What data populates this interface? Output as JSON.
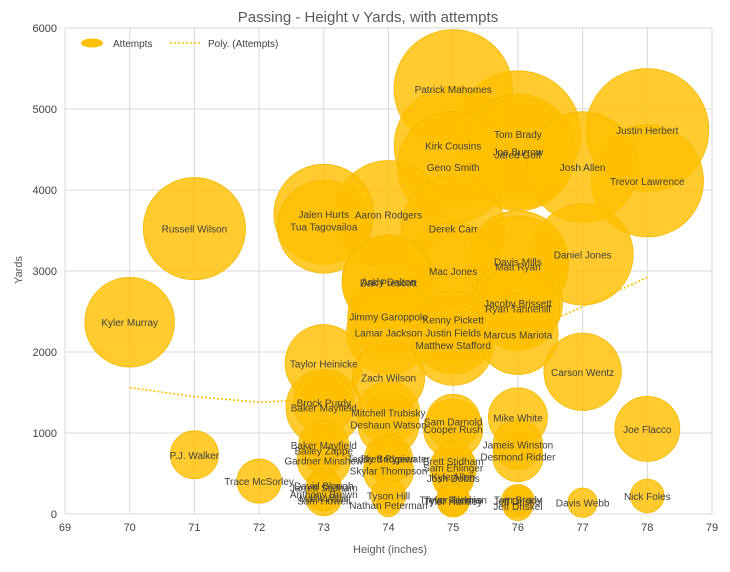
{
  "chart_data": {
    "type": "bubble",
    "title": "Passing - Height v Yards, with attempts",
    "xlabel": "Height (inches)",
    "ylabel": "Yards",
    "xlim": [
      69,
      79
    ],
    "ylim": [
      0,
      6000
    ],
    "x_ticks": [
      "69",
      "70",
      "71",
      "72",
      "73",
      "74",
      "75",
      "76",
      "77",
      "78",
      "79"
    ],
    "y_ticks": [
      "0",
      "1000",
      "2000",
      "3000",
      "4000",
      "5000",
      "6000"
    ],
    "grid": true,
    "legend": {
      "position": "top-left",
      "series_label": "Attempts",
      "trend_label": "Poly. (Attempts)"
    },
    "colors": {
      "bubble": "#FFC000",
      "bubble_stroke": "#F5B800",
      "trend": "#FFC000",
      "grid": "#D9D9D9",
      "text": "#404040",
      "title": "#595959"
    },
    "trend": {
      "x": [
        70,
        71,
        72,
        73,
        74,
        75,
        76,
        77,
        78
      ],
      "y": [
        1560,
        1450,
        1380,
        1420,
        1580,
        1860,
        2200,
        2560,
        2920
      ]
    },
    "points": [
      {
        "name": "Patrick Mahomes",
        "x": 75,
        "y": 5250,
        "attempts": 648
      },
      {
        "name": "Justin Herbert",
        "x": 78,
        "y": 4739,
        "attempts": 699
      },
      {
        "name": "Tom Brady",
        "x": 76,
        "y": 4694,
        "attempts": 733
      },
      {
        "name": "Kirk Cousins",
        "x": 75,
        "y": 4547,
        "attempts": 643
      },
      {
        "name": "Joe Burrow",
        "x": 76,
        "y": 4475,
        "attempts": 606
      },
      {
        "name": "Jared Goff",
        "x": 76,
        "y": 4438,
        "attempts": 587
      },
      {
        "name": "Josh Allen",
        "x": 77,
        "y": 4283,
        "attempts": 567
      },
      {
        "name": "Geno Smith",
        "x": 75,
        "y": 4282,
        "attempts": 572
      },
      {
        "name": "Trevor Lawrence",
        "x": 78,
        "y": 4113,
        "attempts": 584
      },
      {
        "name": "Aaron Rodgers",
        "x": 74,
        "y": 3695,
        "attempts": 542
      },
      {
        "name": "Jalen Hurts",
        "x": 73,
        "y": 3701,
        "attempts": 460
      },
      {
        "name": "Tua Tagovailoa",
        "x": 73,
        "y": 3548,
        "attempts": 400
      },
      {
        "name": "Russell Wilson",
        "x": 71,
        "y": 3524,
        "attempts": 483
      },
      {
        "name": "Derek Carr",
        "x": 75,
        "y": 3522,
        "attempts": 502
      },
      {
        "name": "Daniel Jones",
        "x": 77,
        "y": 3205,
        "attempts": 472
      },
      {
        "name": "Davis Mills",
        "x": 76,
        "y": 3118,
        "attempts": 473
      },
      {
        "name": "Matt Ryan",
        "x": 76,
        "y": 3057,
        "attempts": 469
      },
      {
        "name": "Mac Jones",
        "x": 75,
        "y": 2997,
        "attempts": 442
      },
      {
        "name": "Dak Prescott",
        "x": 74,
        "y": 2860,
        "attempts": 394
      },
      {
        "name": "Andy Dalton",
        "x": 74,
        "y": 2871,
        "attempts": 400
      },
      {
        "name": "Kyler Murray",
        "x": 70,
        "y": 2368,
        "attempts": 371
      },
      {
        "name": "Jacoby Brissett",
        "x": 76,
        "y": 2608,
        "attempts": 369
      },
      {
        "name": "Ryan Tannehill",
        "x": 76,
        "y": 2536,
        "attempts": 325
      },
      {
        "name": "Jimmy Garoppolo",
        "x": 74,
        "y": 2437,
        "attempts": 308
      },
      {
        "name": "Kenny Pickett",
        "x": 75,
        "y": 2404,
        "attempts": 389
      },
      {
        "name": "Lamar Jackson",
        "x": 74,
        "y": 2242,
        "attempts": 326
      },
      {
        "name": "Justin Fields",
        "x": 75,
        "y": 2242,
        "attempts": 318
      },
      {
        "name": "Marcus Mariota",
        "x": 76,
        "y": 2219,
        "attempts": 300
      },
      {
        "name": "Matthew Stafford",
        "x": 75,
        "y": 2087,
        "attempts": 302
      },
      {
        "name": "Taylor Heinicke",
        "x": 73,
        "y": 1859,
        "attempts": 277
      },
      {
        "name": "Carson Wentz",
        "x": 77,
        "y": 1755,
        "attempts": 276
      },
      {
        "name": "Zach Wilson",
        "x": 74,
        "y": 1688,
        "attempts": 242
      },
      {
        "name": "Brock Purdy",
        "x": 73,
        "y": 1374,
        "attempts": 170
      },
      {
        "name": "Baker Mayfield",
        "x": 73,
        "y": 1313,
        "attempts": 264
      },
      {
        "name": "Mitchell Trubisky",
        "x": 74,
        "y": 1252,
        "attempts": 179
      },
      {
        "name": "Mike White",
        "x": 76,
        "y": 1192,
        "attempts": 161
      },
      {
        "name": "Deshaun Watson",
        "x": 74,
        "y": 1102,
        "attempts": 171
      },
      {
        "name": "Sam Darnold",
        "x": 75,
        "y": 1143,
        "attempts": 136
      },
      {
        "name": "Cooper Rush",
        "x": 75,
        "y": 1051,
        "attempts": 162
      },
      {
        "name": "Joe Flacco",
        "x": 78,
        "y": 1051,
        "attempts": 195
      },
      {
        "name": "Baker Mayfield",
        "x": 73,
        "y": 850,
        "attempts": 115
      },
      {
        "name": "Jameis Winston",
        "x": 76,
        "y": 858,
        "attempts": 113
      },
      {
        "name": "P.J. Walker",
        "x": 71,
        "y": 731,
        "attempts": 106
      },
      {
        "name": "Bailey Zappe",
        "x": 73,
        "y": 781,
        "attempts": 92
      },
      {
        "name": "Desmond Ridder",
        "x": 76,
        "y": 708,
        "attempts": 115
      },
      {
        "name": "Gardner Minshew",
        "x": 73,
        "y": 663,
        "attempts": 130
      },
      {
        "name": "Teddy Bridgewater",
        "x": 74,
        "y": 683,
        "attempts": 106
      },
      {
        "name": "Brett Rypien",
        "x": 74,
        "y": 683,
        "attempts": 80
      },
      {
        "name": "Brett Stidham",
        "x": 75,
        "y": 656,
        "attempts": 74
      },
      {
        "name": "Sam Ehlinger",
        "x": 75,
        "y": 573,
        "attempts": 100
      },
      {
        "name": "Skylar Thompson",
        "x": 74,
        "y": 534,
        "attempts": 115
      },
      {
        "name": "Kyle Allen",
        "x": 75,
        "y": 462,
        "attempts": 73
      },
      {
        "name": "Josh Dobbs",
        "x": 75,
        "y": 445,
        "attempts": 80
      },
      {
        "name": "Trace McSorley",
        "x": 72,
        "y": 406,
        "attempts": 90
      },
      {
        "name": "David Blough",
        "x": 73,
        "y": 350,
        "attempts": 55
      },
      {
        "name": "Jarrett Stidham",
        "x": 73,
        "y": 330,
        "attempts": 50
      },
      {
        "name": "Anthony Brown",
        "x": 73,
        "y": 250,
        "attempts": 55
      },
      {
        "name": "Malik Willis",
        "x": 73,
        "y": 200,
        "attempts": 60
      },
      {
        "name": "Tyson Hill",
        "x": 74,
        "y": 230,
        "attempts": 56
      },
      {
        "name": "Trevor Siemian",
        "x": 75,
        "y": 180,
        "attempts": 50
      },
      {
        "name": "Tyler Huntley",
        "x": 75,
        "y": 160,
        "attempts": 48
      },
      {
        "name": "Jeff Driskel",
        "x": 76,
        "y": 160,
        "attempts": 50
      },
      {
        "name": "Jeff Driskel",
        "x": 76,
        "y": 100,
        "attempts": 40
      },
      {
        "name": "Davis Webb",
        "x": 77,
        "y": 140,
        "attempts": 40
      },
      {
        "name": "Nick Foles",
        "x": 78,
        "y": 224,
        "attempts": 52
      },
      {
        "name": "Sam Howell",
        "x": 73,
        "y": 169,
        "attempts": 19
      },
      {
        "name": "Nathan Peterman",
        "x": 74,
        "y": 114,
        "attempts": 26
      },
      {
        "name": "Tyler Perkins",
        "x": 75,
        "y": 178,
        "attempts": 45
      },
      {
        "name": "Tom Brady",
        "x": 76,
        "y": 180,
        "attempts": 35
      }
    ]
  }
}
